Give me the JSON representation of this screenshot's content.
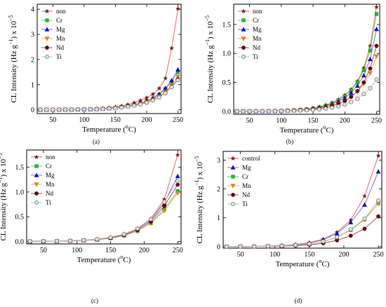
{
  "figure": {
    "panel_labels": [
      "(a)",
      "(b)",
      "(c)",
      "(d)"
    ],
    "xlabel_text": "Temperature (",
    "xlabel_unit_sup": "o",
    "xlabel_unit_end": "C)",
    "ylabel_main": "CL Intensity (Hz g",
    "ylabel_sup": "−1",
    "ylabel_tail": ") x 10",
    "ylabel_exp": "−5"
  },
  "colors": {
    "non": "#8b1a1a",
    "control": "#8b1a1a",
    "Cr": "#22bb22",
    "Mg": "#1111cc",
    "Mn": "#dd8822",
    "Nd": "#6b0000",
    "Ti": "#aaaaaa",
    "line_non": "#ee5555",
    "line_Cr": "#55cc55",
    "line_Mg": "#6666ee",
    "line_Mn": "#eeaa55",
    "line_Nd": "#aa4444",
    "line_Ti": "#bbbbbb"
  },
  "chart_data": [
    {
      "type": "scatter",
      "panel": "(a)",
      "xlim": [
        25,
        255
      ],
      "ylim": [
        -0.15,
        4.2
      ],
      "xticks": [
        50,
        100,
        150,
        200,
        250
      ],
      "yticks": [
        0,
        1,
        2,
        3,
        4
      ],
      "legend": "top-left",
      "x": [
        30,
        40,
        50,
        60,
        70,
        80,
        90,
        100,
        110,
        120,
        130,
        140,
        150,
        160,
        170,
        180,
        190,
        200,
        210,
        220,
        230,
        240,
        250
      ],
      "series": [
        {
          "name": "non",
          "marker": "star",
          "values": [
            0.005,
            0.005,
            0.006,
            0.007,
            0.008,
            0.01,
            0.014,
            0.019,
            0.027,
            0.038,
            0.054,
            0.077,
            0.11,
            0.155,
            0.21,
            0.28,
            0.37,
            0.48,
            0.62,
            0.85,
            1.25,
            2.45,
            4.02
          ]
        },
        {
          "name": "Cr",
          "marker": "square",
          "values": [
            0.004,
            0.004,
            0.005,
            0.006,
            0.007,
            0.009,
            0.012,
            0.016,
            0.022,
            0.03,
            0.042,
            0.058,
            0.08,
            0.11,
            0.15,
            0.2,
            0.26,
            0.34,
            0.45,
            0.6,
            0.82,
            1.1,
            1.5
          ]
        },
        {
          "name": "Mg",
          "marker": "triangle-up",
          "values": [
            0.004,
            0.004,
            0.005,
            0.006,
            0.007,
            0.009,
            0.012,
            0.016,
            0.022,
            0.031,
            0.043,
            0.06,
            0.083,
            0.115,
            0.155,
            0.21,
            0.27,
            0.35,
            0.47,
            0.63,
            0.86,
            1.17,
            1.6
          ]
        },
        {
          "name": "Mn",
          "marker": "triangle-down",
          "values": [
            0.003,
            0.004,
            0.004,
            0.005,
            0.006,
            0.008,
            0.011,
            0.014,
            0.019,
            0.027,
            0.037,
            0.051,
            0.07,
            0.097,
            0.13,
            0.175,
            0.23,
            0.3,
            0.4,
            0.53,
            0.72,
            0.98,
            1.32
          ]
        },
        {
          "name": "Nd",
          "marker": "circle",
          "values": [
            0.003,
            0.003,
            0.004,
            0.005,
            0.006,
            0.008,
            0.01,
            0.014,
            0.019,
            0.026,
            0.036,
            0.05,
            0.068,
            0.093,
            0.125,
            0.17,
            0.22,
            0.29,
            0.38,
            0.5,
            0.68,
            0.92,
            1.22
          ]
        },
        {
          "name": "Ti",
          "marker": "circle-open",
          "values": [
            0.003,
            0.003,
            0.004,
            0.005,
            0.006,
            0.007,
            0.01,
            0.013,
            0.018,
            0.024,
            0.033,
            0.046,
            0.063,
            0.087,
            0.118,
            0.16,
            0.21,
            0.28,
            0.37,
            0.49,
            0.66,
            0.9,
            1.18
          ]
        }
      ]
    },
    {
      "type": "scatter",
      "panel": "(b)",
      "xlim": [
        25,
        255
      ],
      "ylim": [
        -0.05,
        1.85
      ],
      "xticks": [
        50,
        100,
        150,
        200,
        250
      ],
      "yticks": [
        0.0,
        0.5,
        1.0,
        1.5
      ],
      "yticklabels": [
        "0.0",
        "0.5",
        "1.0",
        "1.5"
      ],
      "legend": "top-left",
      "x": [
        30,
        40,
        50,
        60,
        70,
        80,
        90,
        100,
        110,
        120,
        130,
        140,
        150,
        160,
        170,
        180,
        190,
        200,
        210,
        220,
        230,
        240,
        250
      ],
      "series": [
        {
          "name": "non",
          "marker": "star",
          "values": [
            0.002,
            0.002,
            0.003,
            0.003,
            0.004,
            0.005,
            0.007,
            0.01,
            0.014,
            0.02,
            0.028,
            0.04,
            0.056,
            0.078,
            0.11,
            0.15,
            0.205,
            0.28,
            0.38,
            0.52,
            0.75,
            1.13,
            1.8
          ]
        },
        {
          "name": "Cr",
          "marker": "square",
          "values": [
            0.002,
            0.002,
            0.003,
            0.003,
            0.004,
            0.005,
            0.007,
            0.009,
            0.013,
            0.018,
            0.026,
            0.036,
            0.05,
            0.07,
            0.098,
            0.136,
            0.19,
            0.26,
            0.36,
            0.5,
            0.71,
            1.05,
            1.68
          ]
        },
        {
          "name": "Mg",
          "marker": "triangle-up",
          "values": [
            0.002,
            0.002,
            0.003,
            0.003,
            0.004,
            0.005,
            0.006,
            0.009,
            0.012,
            0.017,
            0.024,
            0.033,
            0.046,
            0.064,
            0.09,
            0.125,
            0.17,
            0.23,
            0.32,
            0.44,
            0.62,
            0.9,
            1.42
          ]
        },
        {
          "name": "Mn",
          "marker": "triangle-down",
          "values": [
            0.002,
            0.002,
            0.002,
            0.003,
            0.003,
            0.004,
            0.005,
            0.007,
            0.01,
            0.014,
            0.019,
            0.026,
            0.036,
            0.05,
            0.07,
            0.097,
            0.135,
            0.18,
            0.25,
            0.34,
            0.47,
            0.66,
            0.95
          ]
        },
        {
          "name": "Nd",
          "marker": "circle",
          "values": [
            0.002,
            0.002,
            0.002,
            0.003,
            0.003,
            0.004,
            0.005,
            0.007,
            0.01,
            0.013,
            0.018,
            0.025,
            0.035,
            0.049,
            0.068,
            0.095,
            0.13,
            0.18,
            0.25,
            0.35,
            0.5,
            0.74,
            1.13
          ]
        },
        {
          "name": "Ti",
          "marker": "circle-open",
          "values": [
            0.001,
            0.001,
            0.002,
            0.002,
            0.002,
            0.003,
            0.004,
            0.005,
            0.007,
            0.009,
            0.013,
            0.018,
            0.024,
            0.033,
            0.046,
            0.063,
            0.086,
            0.117,
            0.16,
            0.22,
            0.3,
            0.4,
            0.55
          ]
        }
      ]
    },
    {
      "type": "scatter",
      "panel": "(c)",
      "xlim": [
        25,
        255
      ],
      "ylim": [
        -0.05,
        1.85
      ],
      "xticks": [
        50,
        100,
        150,
        200,
        250
      ],
      "yticks": [
        0.0,
        0.5,
        1.0,
        1.5
      ],
      "yticklabels": [
        "0.0",
        "0.5",
        "1.0",
        "1.5"
      ],
      "legend": "top-left",
      "x": [
        30,
        50,
        70,
        90,
        110,
        130,
        150,
        170,
        190,
        210,
        230,
        250
      ],
      "series": [
        {
          "name": "non",
          "marker": "star",
          "values": [
            0.002,
            0.004,
            0.008,
            0.014,
            0.025,
            0.045,
            0.085,
            0.15,
            0.26,
            0.46,
            0.85,
            1.75
          ]
        },
        {
          "name": "Cr",
          "marker": "square",
          "values": [
            0.002,
            0.003,
            0.006,
            0.011,
            0.02,
            0.036,
            0.066,
            0.12,
            0.21,
            0.37,
            0.65,
            1.02
          ]
        },
        {
          "name": "Mg",
          "marker": "triangle-up",
          "values": [
            0.002,
            0.004,
            0.007,
            0.013,
            0.023,
            0.042,
            0.077,
            0.14,
            0.25,
            0.43,
            0.78,
            1.32
          ]
        },
        {
          "name": "Mn",
          "marker": "triangle-down",
          "values": [
            0.002,
            0.003,
            0.006,
            0.011,
            0.02,
            0.036,
            0.066,
            0.12,
            0.21,
            0.37,
            0.62,
            0.98
          ]
        },
        {
          "name": "Nd",
          "marker": "circle",
          "values": [
            0.002,
            0.003,
            0.006,
            0.012,
            0.021,
            0.038,
            0.07,
            0.128,
            0.23,
            0.4,
            0.72,
            1.15
          ]
        },
        {
          "name": "Ti",
          "marker": "circle-open",
          "values": [
            0.002,
            0.004,
            0.007,
            0.013,
            0.024,
            0.044,
            0.08,
            0.145,
            0.26,
            0.45,
            0.8,
            1.22
          ]
        }
      ]
    },
    {
      "type": "scatter",
      "panel": "(d)",
      "xlim": [
        25,
        255
      ],
      "ylim": [
        -0.05,
        3.3
      ],
      "xticks": [
        50,
        100,
        150,
        200,
        250
      ],
      "yticks": [
        0,
        1,
        2,
        3
      ],
      "legend": "top-left",
      "x": [
        30,
        50,
        70,
        90,
        110,
        130,
        150,
        170,
        190,
        210,
        230,
        250
      ],
      "series": [
        {
          "name": "control",
          "marker": "star",
          "values": [
            0.003,
            0.006,
            0.012,
            0.022,
            0.04,
            0.074,
            0.14,
            0.26,
            0.5,
            0.92,
            1.75,
            3.15
          ]
        },
        {
          "name": "Mg",
          "marker": "triangle-up",
          "values": [
            0.003,
            0.006,
            0.011,
            0.02,
            0.037,
            0.068,
            0.128,
            0.24,
            0.46,
            0.84,
            1.45,
            2.6
          ]
        },
        {
          "name": "Cr",
          "marker": "square",
          "values": [
            0.002,
            0.004,
            0.008,
            0.015,
            0.027,
            0.05,
            0.093,
            0.17,
            0.32,
            0.58,
            0.95,
            1.5
          ]
        },
        {
          "name": "Mn",
          "marker": "triangle-down",
          "values": [
            0.002,
            0.004,
            0.008,
            0.015,
            0.027,
            0.05,
            0.093,
            0.17,
            0.32,
            0.58,
            0.93,
            1.5
          ]
        },
        {
          "name": "Nd",
          "marker": "circle",
          "values": [
            0.002,
            0.003,
            0.006,
            0.01,
            0.019,
            0.035,
            0.065,
            0.12,
            0.22,
            0.38,
            0.62,
            1.05
          ]
        },
        {
          "name": "Ti",
          "marker": "circle-open",
          "values": [
            0.002,
            0.004,
            0.008,
            0.015,
            0.028,
            0.052,
            0.096,
            0.18,
            0.33,
            0.6,
            0.97,
            1.6
          ]
        }
      ]
    }
  ]
}
